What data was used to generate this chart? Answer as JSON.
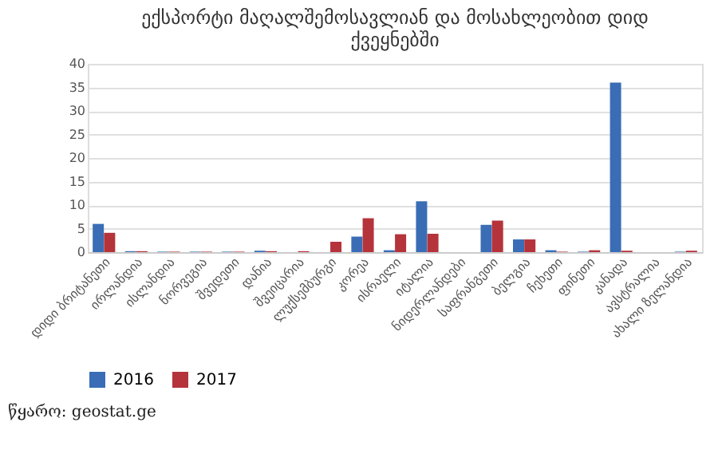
{
  "chart_data": {
    "type": "bar",
    "title": [
      "ექსპორტი მაღალშემოსავლიან და მოსახლეობით დიდ",
      "ქვეყნებში"
    ],
    "categories": [
      "დიდი ბრიტანეთი",
      "ირლანდია",
      "ისლანდია",
      "ნორვეგია",
      "შვედეთი",
      "დანია",
      "შვეიცარია",
      "ლუქსემბურგი",
      "კორეა",
      "ისრაელი",
      "იტალია",
      "ნიდერლანდები",
      "საფრანგეთი",
      "ბელგია",
      "ჩეხეთი",
      "ფინეთი",
      "კანადა",
      "ავსტრალია",
      "ახალი ზელანდია"
    ],
    "series": [
      {
        "name": "2016",
        "color": "#3a6db5",
        "values": [
          6.0,
          0.2,
          0.1,
          0.1,
          0.1,
          0.3,
          0.0,
          0.0,
          3.3,
          0.4,
          10.8,
          0.0,
          5.8,
          2.7,
          0.4,
          0.1,
          36.0,
          0.0,
          0.1
        ]
      },
      {
        "name": "2017",
        "color": "#b5333a",
        "values": [
          4.1,
          0.2,
          0.1,
          0.1,
          0.1,
          0.2,
          0.2,
          2.2,
          7.2,
          3.8,
          3.9,
          0.0,
          6.7,
          2.7,
          0.1,
          0.4,
          0.3,
          0.0,
          0.3
        ]
      }
    ],
    "ylim": [
      0,
      40
    ],
    "yticks": [
      0,
      5,
      10,
      15,
      20,
      25,
      30,
      35,
      40
    ],
    "grid": "y",
    "legend": "bottom",
    "annotations": [
      "წყარო: geostat.ge"
    ]
  }
}
